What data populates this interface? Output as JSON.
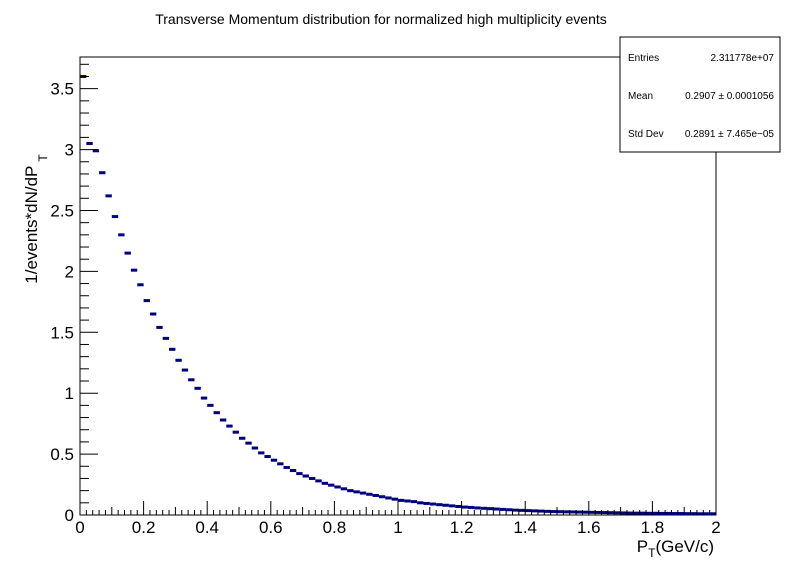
{
  "chart_data": {
    "type": "histogram",
    "title": "Transverse Momentum distribution for normalized high multiplicity events",
    "xlabel": {
      "main": "P",
      "sub": "T",
      "suffix": "(GeV/c)"
    },
    "ylabel": {
      "main": "1/events*dN/dP",
      "sub": "T"
    },
    "xlim": [
      0,
      2
    ],
    "ylim": [
      0,
      3.76
    ],
    "xticks": [
      "0",
      "0.2",
      "0.4",
      "0.6",
      "0.8",
      "1",
      "1.2",
      "1.4",
      "1.6",
      "1.8",
      "2"
    ],
    "yticks": [
      "0",
      "0.5",
      "1",
      "1.5",
      "2",
      "2.5",
      "3",
      "3.5"
    ],
    "bin_width": 0.02,
    "series_color": "#000080",
    "values": [
      3.6,
      3.05,
      2.99,
      2.81,
      2.62,
      2.45,
      2.3,
      2.15,
      2.01,
      1.89,
      1.76,
      1.65,
      1.54,
      1.45,
      1.36,
      1.27,
      1.19,
      1.11,
      1.04,
      0.96,
      0.9,
      0.84,
      0.78,
      0.73,
      0.68,
      0.63,
      0.59,
      0.55,
      0.51,
      0.48,
      0.45,
      0.42,
      0.39,
      0.365,
      0.34,
      0.32,
      0.3,
      0.28,
      0.26,
      0.245,
      0.23,
      0.215,
      0.2,
      0.19,
      0.18,
      0.17,
      0.16,
      0.15,
      0.14,
      0.13,
      0.12,
      0.115,
      0.11,
      0.1,
      0.095,
      0.09,
      0.085,
      0.08,
      0.075,
      0.07,
      0.065,
      0.062,
      0.058,
      0.055,
      0.052,
      0.049,
      0.046,
      0.043,
      0.04,
      0.038,
      0.036,
      0.034,
      0.032,
      0.03,
      0.028,
      0.027,
      0.026,
      0.025,
      0.024,
      0.023,
      0.022,
      0.021,
      0.02,
      0.019,
      0.018,
      0.017,
      0.016,
      0.015,
      0.015,
      0.014,
      0.014,
      0.013,
      0.013,
      0.012,
      0.012,
      0.011,
      0.011,
      0.01,
      0.01,
      0.01
    ],
    "stats": {
      "entries_label": "Entries",
      "entries_value": "2.311778e+07",
      "mean_label": "Mean",
      "mean_value": "0.2907 ± 0.0001056",
      "stddev_label": "Std Dev",
      "stddev_value": "0.2891 ± 7.465e−05"
    },
    "grid": false,
    "legend": "none",
    "stats_box_position": "top-right"
  }
}
